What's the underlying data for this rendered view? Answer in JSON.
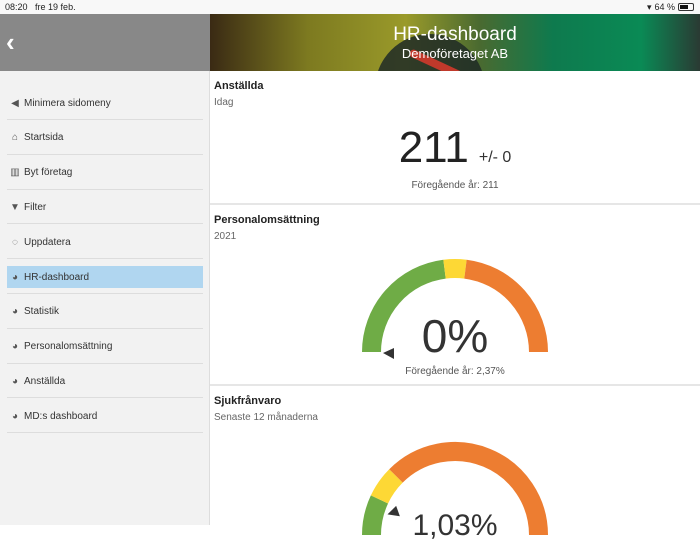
{
  "status": {
    "time": "08:20",
    "date": "fre 19 feb.",
    "battery": "64 %",
    "battery_level": 0.64
  },
  "header": {
    "title": "HR-dashboard",
    "subtitle": "Demoföretaget AB"
  },
  "sidebar": {
    "items": [
      {
        "label": "Minimera sidomeny",
        "icon": "caret-left-icon"
      },
      {
        "label": "Startsida",
        "icon": "home-icon"
      },
      {
        "label": "Byt företag",
        "icon": "building-icon"
      },
      {
        "label": "Filter",
        "icon": "filter-icon"
      },
      {
        "label": "Uppdatera",
        "icon": "refresh-icon"
      },
      {
        "label": "HR-dashboard",
        "icon": "pie-chart-icon",
        "selected": true
      },
      {
        "label": "Statistik",
        "icon": "pie-chart-icon"
      },
      {
        "label": "Personalomsättning",
        "icon": "pie-chart-icon"
      },
      {
        "label": "Anställda",
        "icon": "pie-chart-icon"
      },
      {
        "label": "MD:s dashboard",
        "icon": "pie-chart-icon"
      }
    ]
  },
  "colors": {
    "green": "#6fac46",
    "yellow": "#fdd835",
    "orange": "#ed7d31",
    "selected": "#b0d6f0"
  },
  "cards": {
    "employees": {
      "title": "Anställda",
      "subtitle": "Idag",
      "value": "211",
      "change": "+/- 0",
      "previous": "Föregående år: 211"
    },
    "turnover": {
      "title": "Personalomsättning",
      "subtitle": "2021",
      "value": "0%",
      "previous": "Föregående år: 2,37%",
      "pointer": 0,
      "bands": [
        0.46,
        0.54
      ]
    },
    "sick": {
      "title": "Sjukfrånvaro",
      "subtitle": "Senaste 12 månaderna",
      "value": "1,03%",
      "pointer": 0.11,
      "bands": [
        0.14,
        0.25
      ]
    }
  }
}
